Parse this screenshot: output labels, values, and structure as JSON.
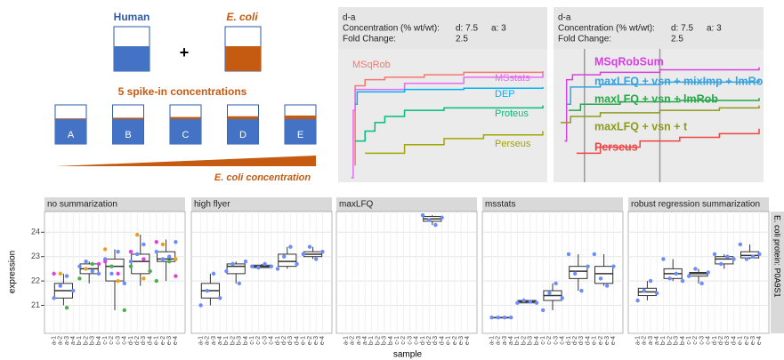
{
  "diagram": {
    "human": "Human",
    "plus": "+",
    "ecoli": "E. coli",
    "spike_title": "5 spike-in concentrations",
    "samples": [
      "A",
      "B",
      "C",
      "D",
      "E"
    ],
    "gradient_label": "E. coli concentration"
  },
  "chart_data": [
    {
      "type": "step",
      "contrast": "d-a",
      "concentration_label": "Concentration (% wt/wt):",
      "concentration_d": "d: 7.5",
      "concentration_a": "a: 3",
      "fold_change_label": "Fold Change:",
      "fold_change": 2.5,
      "xlim": [
        0,
        1
      ],
      "ylim": [
        0,
        1
      ],
      "series": [
        {
          "name": "MSqRob",
          "color": "#f8766d",
          "x": [
            0.05,
            0.05,
            0.1,
            0.2,
            0.4,
            0.6,
            1.0
          ],
          "values": [
            0.1,
            0.75,
            0.8,
            0.82,
            0.84,
            0.86,
            0.87
          ]
        },
        {
          "name": "MSstats",
          "color": "#e76bf3",
          "x": [
            0.03,
            0.04,
            0.05,
            0.3,
            0.6,
            1.0
          ],
          "values": [
            0.0,
            0.55,
            0.72,
            0.77,
            0.82,
            0.86
          ]
        },
        {
          "name": "DEP",
          "color": "#00b0f6",
          "x": [
            0.05,
            0.06,
            0.3,
            0.6,
            1.0
          ],
          "values": [
            0.6,
            0.7,
            0.72,
            0.73,
            0.74
          ]
        },
        {
          "name": "Proteus",
          "color": "#00bf7d",
          "x": [
            0.05,
            0.1,
            0.15,
            0.2,
            0.3,
            0.5,
            1.0
          ],
          "values": [
            0.3,
            0.38,
            0.45,
            0.5,
            0.55,
            0.57,
            0.59
          ]
        },
        {
          "name": "Perseus",
          "color": "#a3a500",
          "x": [
            0.1,
            0.3,
            0.5,
            0.7,
            1.0
          ],
          "values": [
            0.2,
            0.27,
            0.32,
            0.35,
            0.38
          ]
        }
      ]
    },
    {
      "type": "step",
      "contrast": "d-a",
      "concentration_label": "Concentration (% wt/wt):",
      "concentration_d": "d: 7.5",
      "concentration_a": "a: 3",
      "fold_change_label": "Fold Change:",
      "fold_change": 2.5,
      "xlim": [
        0,
        1
      ],
      "ylim": [
        0,
        1
      ],
      "vlines": [
        0.12,
        0.5
      ],
      "series": [
        {
          "name": "MSqRobSum",
          "color": "#d63fe0",
          "x": [
            0.02,
            0.03,
            0.06,
            0.2,
            0.5,
            1.0
          ],
          "values": [
            0.3,
            0.8,
            0.84,
            0.86,
            0.88,
            0.9
          ]
        },
        {
          "name": "maxLFQ + vsn + mixImp + lmRob",
          "color": "#35a2e0",
          "x": [
            0.03,
            0.05,
            0.2,
            0.5,
            1.0
          ],
          "values": [
            0.6,
            0.74,
            0.76,
            0.78,
            0.8
          ]
        },
        {
          "name": "maxLFQ + vsn + lmRob",
          "color": "#26a74a",
          "x": [
            0.04,
            0.1,
            0.3,
            0.6,
            1.0
          ],
          "values": [
            0.55,
            0.6,
            0.62,
            0.63,
            0.65
          ]
        },
        {
          "name": "maxLFQ + vsn + t",
          "color": "#8e9a1c",
          "x": [
            0.0,
            0.05,
            0.2,
            0.5,
            0.8,
            1.0
          ],
          "values": [
            0.45,
            0.5,
            0.53,
            0.55,
            0.57,
            0.59
          ]
        },
        {
          "name": "Perseus",
          "color": "#ee4444",
          "x": [
            0.08,
            0.2,
            0.4,
            0.6,
            0.8,
            1.0
          ],
          "values": [
            0.2,
            0.25,
            0.3,
            0.33,
            0.36,
            0.4
          ]
        }
      ]
    },
    {
      "type": "boxplot",
      "xlabel": "sample",
      "ylabel": "expression",
      "strip_right": "E. coli protein: P0A9S1",
      "ylim": [
        19.85,
        24.85
      ],
      "yticks": [
        21,
        22,
        23,
        24
      ],
      "grid": true,
      "categories": [
        "a-1",
        "a-2",
        "a-3",
        "a-4",
        "b-1",
        "b-2",
        "b-3",
        "b-4",
        "c-1",
        "c-2",
        "c-3",
        "c-4",
        "d-1",
        "d-2",
        "d-3",
        "d-4",
        "e-1",
        "e-2",
        "e-3",
        "e-4"
      ],
      "facets": [
        {
          "title": "no summarization",
          "boxes": [
            {
              "low": 21.0,
              "q1": 21.3,
              "median": 21.6,
              "q3": 21.9,
              "high": 22.3
            },
            {
              "low": 21.9,
              "q1": 22.3,
              "median": 22.5,
              "q3": 22.7,
              "high": 22.8
            },
            {
              "low": 20.8,
              "q1": 22.0,
              "median": 22.6,
              "q3": 22.9,
              "high": 23.3
            },
            {
              "low": 21.8,
              "q1": 22.3,
              "median": 22.8,
              "q3": 23.1,
              "high": 23.9
            },
            {
              "low": 22.0,
              "q1": 22.8,
              "median": 22.9,
              "q3": 23.2,
              "high": 23.7
            }
          ],
          "points": [
            {
              "color": "#6b8cff",
              "x": [
                "a-1",
                "a-2",
                "a-3",
                "a-4",
                "b-1",
                "b-2",
                "b-3",
                "b-4",
                "c-1",
                "c-2",
                "c-3",
                "c-4",
                "d-1",
                "d-2",
                "d-3",
                "d-4",
                "e-1",
                "e-2",
                "e-3",
                "e-4"
              ],
              "values": [
                21.3,
                21.8,
                22.2,
                21.6,
                22.6,
                22.8,
                22.4,
                22.3,
                22.9,
                22.3,
                23.2,
                21.9,
                22.8,
                23.1,
                23.5,
                22.4,
                23.2,
                22.9,
                23.0,
                23.6
              ]
            },
            {
              "color": "#4caf50",
              "x": [
                "a-3",
                "b-1",
                "b-3",
                "c-2",
                "c-4",
                "d-1",
                "d-4",
                "e-1",
                "e-3"
              ],
              "values": [
                20.9,
                22.1,
                22.7,
                22.6,
                20.8,
                22.6,
                22.4,
                22.0,
                22.8
              ]
            },
            {
              "color": "#e8a020",
              "x": [
                "a-2",
                "b-2",
                "c-1",
                "c-3",
                "d-2",
                "d-3",
                "e-2",
                "e-4"
              ],
              "values": [
                22.3,
                22.5,
                23.3,
                22.0,
                23.9,
                22.1,
                23.5,
                22.9
              ]
            },
            {
              "color": "#e040e0",
              "x": [
                "a-1",
                "b-4",
                "c-1",
                "c-3",
                "d-1",
                "d-3",
                "e-1",
                "e-4"
              ],
              "values": [
                22.3,
                22.7,
                22.8,
                22.3,
                23.2,
                22.9,
                23.6,
                22.2
              ]
            }
          ]
        },
        {
          "title": "high flyer",
          "boxes": [
            {
              "low": 21.0,
              "q1": 21.3,
              "median": 21.6,
              "q3": 21.9,
              "high": 22.3
            },
            {
              "low": 21.9,
              "q1": 22.3,
              "median": 22.6,
              "q3": 22.7,
              "high": 22.8
            },
            {
              "low": 22.55,
              "q1": 22.55,
              "median": 22.6,
              "q3": 22.65,
              "high": 22.7
            },
            {
              "low": 22.5,
              "q1": 22.6,
              "median": 22.8,
              "q3": 23.1,
              "high": 23.4
            },
            {
              "low": 22.9,
              "q1": 23.0,
              "median": 23.1,
              "q3": 23.2,
              "high": 23.4
            }
          ],
          "points": [
            {
              "color": "#6b8cff",
              "x": [
                "a-1",
                "a-2",
                "a-3",
                "a-4",
                "b-1",
                "b-2",
                "b-3",
                "b-4",
                "c-1",
                "c-2",
                "c-3",
                "c-4",
                "d-1",
                "d-2",
                "d-3",
                "d-4",
                "e-1",
                "e-2",
                "e-3",
                "e-4"
              ],
              "values": [
                21.0,
                21.6,
                22.3,
                21.3,
                22.4,
                22.7,
                21.9,
                22.8,
                22.6,
                22.55,
                22.7,
                22.6,
                22.5,
                23.0,
                23.4,
                22.7,
                23.1,
                23.4,
                22.9,
                23.2
              ]
            }
          ]
        },
        {
          "title": "maxLFQ",
          "boxes": [
            null,
            null,
            null,
            {
              "low": 24.3,
              "q1": 24.45,
              "median": 24.55,
              "q3": 24.65,
              "high": 24.7
            },
            null
          ],
          "points": [
            {
              "color": "#6b8cff",
              "x": [
                "d-1",
                "d-2",
                "d-3",
                "d-4"
              ],
              "values": [
                24.7,
                24.5,
                24.3,
                24.6
              ]
            }
          ]
        },
        {
          "title": "msstats",
          "boxes": [
            {
              "low": 20.5,
              "q1": 20.5,
              "median": 20.5,
              "q3": 20.5,
              "high": 20.5
            },
            {
              "low": 21.1,
              "q1": 21.1,
              "median": 21.15,
              "q3": 21.2,
              "high": 21.2
            },
            {
              "low": 20.8,
              "q1": 21.2,
              "median": 21.4,
              "q3": 21.6,
              "high": 21.9
            },
            {
              "low": 21.6,
              "q1": 22.1,
              "median": 22.4,
              "q3": 22.6,
              "high": 23.1
            },
            {
              "low": 21.8,
              "q1": 21.9,
              "median": 22.3,
              "q3": 22.6,
              "high": 23.1
            }
          ],
          "points": [
            {
              "color": "#6b8cff",
              "x": [
                "a-1",
                "a-2",
                "a-3",
                "a-4",
                "b-1",
                "b-2",
                "b-3",
                "b-4",
                "c-1",
                "c-2",
                "c-3",
                "c-4",
                "d-1",
                "d-2",
                "d-3",
                "d-4",
                "e-1",
                "e-2",
                "e-3",
                "e-4"
              ],
              "values": [
                20.5,
                20.5,
                20.5,
                20.5,
                21.1,
                21.2,
                21.15,
                21.1,
                20.8,
                21.5,
                21.9,
                21.3,
                23.1,
                22.3,
                21.6,
                22.6,
                23.1,
                22.1,
                21.8,
                22.6
              ]
            }
          ]
        },
        {
          "title": "robust regression summarization",
          "boxes": [
            {
              "low": 21.2,
              "q1": 21.4,
              "median": 21.55,
              "q3": 21.7,
              "high": 22.0
            },
            {
              "low": 22.0,
              "q1": 22.1,
              "median": 22.3,
              "q3": 22.5,
              "high": 22.9
            },
            {
              "low": 21.9,
              "q1": 22.2,
              "median": 22.3,
              "q3": 22.35,
              "high": 22.5
            },
            {
              "low": 22.5,
              "q1": 22.7,
              "median": 22.9,
              "q3": 23.0,
              "high": 23.1
            },
            {
              "low": 22.9,
              "q1": 22.95,
              "median": 23.05,
              "q3": 23.2,
              "high": 23.5
            }
          ],
          "points": [
            {
              "color": "#6b8cff",
              "x": [
                "a-1",
                "a-2",
                "a-3",
                "a-4",
                "b-1",
                "b-2",
                "b-3",
                "b-4",
                "c-1",
                "c-2",
                "c-3",
                "c-4",
                "d-1",
                "d-2",
                "d-3",
                "d-4",
                "e-1",
                "e-2",
                "e-3",
                "e-4"
              ],
              "values": [
                21.2,
                21.6,
                22.0,
                21.5,
                22.9,
                22.1,
                22.3,
                22.0,
                22.2,
                22.5,
                21.9,
                22.35,
                23.1,
                22.7,
                23.0,
                22.9,
                23.5,
                22.9,
                23.0,
                23.1
              ]
            }
          ]
        }
      ]
    }
  ]
}
